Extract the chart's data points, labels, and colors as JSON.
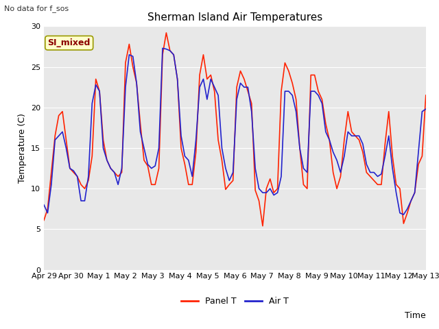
{
  "title": "Sherman Island Air Temperatures",
  "ylabel": "Temperature (C)",
  "xlabel": "Time",
  "no_data_label": "No data for f_sos",
  "annotation_label": "SI_mixed",
  "ylim": [
    0,
    30
  ],
  "yticks": [
    0,
    5,
    10,
    15,
    20,
    25,
    30
  ],
  "xtick_labels": [
    "Apr 29",
    "Apr 30",
    "May 1",
    "May 2",
    "May 3",
    "May 4",
    "May 5",
    "May 6",
    "May 7",
    "May 8",
    "May 9",
    "May 10",
    "May 11",
    "May 12",
    "May 13"
  ],
  "legend_labels": [
    "Panel T",
    "Air T"
  ],
  "line_colors": [
    "#ff2200",
    "#2222cc"
  ],
  "bg_color": "#e8e8e8",
  "title_fontsize": 11,
  "label_fontsize": 9,
  "tick_fontsize": 8,
  "panel_T": [
    6.1,
    7.5,
    12.0,
    16.5,
    19.0,
    19.5,
    16.0,
    12.5,
    12.0,
    11.5,
    10.5,
    10.0,
    11.0,
    14.0,
    23.5,
    22.0,
    16.0,
    13.5,
    12.5,
    12.0,
    11.5,
    12.0,
    25.5,
    27.8,
    25.0,
    23.0,
    18.0,
    13.5,
    12.8,
    10.5,
    10.5,
    12.5,
    26.5,
    29.2,
    27.0,
    26.5,
    23.5,
    15.0,
    13.0,
    10.5,
    10.5,
    14.5,
    24.0,
    26.5,
    23.5,
    24.0,
    22.0,
    16.0,
    13.5,
    9.9,
    10.5,
    11.0,
    22.5,
    24.5,
    23.5,
    22.0,
    20.5,
    9.8,
    8.5,
    5.4,
    10.0,
    11.2,
    9.5,
    10.0,
    22.0,
    25.5,
    24.5,
    23.0,
    21.0,
    15.0,
    10.5,
    10.0,
    24.0,
    24.0,
    22.0,
    21.0,
    18.0,
    16.0,
    12.0,
    10.0,
    11.5,
    16.0,
    19.5,
    17.0,
    16.5,
    16.0,
    14.5,
    12.0,
    11.5,
    11.0,
    10.5,
    10.5,
    15.5,
    19.5,
    14.0,
    10.5,
    10.0,
    5.7,
    7.0,
    8.5,
    9.5,
    13.0,
    14.0,
    21.5
  ],
  "air_T": [
    8.0,
    7.0,
    10.5,
    16.0,
    16.5,
    17.0,
    15.0,
    12.5,
    12.2,
    11.5,
    8.5,
    8.5,
    11.5,
    20.5,
    22.8,
    22.0,
    15.0,
    13.5,
    12.5,
    12.0,
    10.5,
    12.5,
    22.5,
    26.5,
    26.3,
    23.0,
    17.0,
    15.0,
    13.0,
    12.5,
    12.8,
    15.0,
    27.3,
    27.2,
    27.0,
    26.5,
    23.5,
    16.5,
    14.0,
    13.5,
    11.5,
    16.0,
    22.5,
    23.5,
    21.0,
    23.5,
    22.5,
    21.5,
    15.0,
    12.5,
    11.0,
    12.0,
    21.0,
    23.0,
    22.5,
    22.5,
    19.5,
    12.5,
    10.0,
    9.5,
    9.5,
    10.0,
    9.2,
    9.5,
    11.5,
    22.0,
    22.0,
    21.5,
    19.5,
    15.0,
    12.5,
    12.0,
    22.0,
    22.0,
    21.5,
    20.5,
    17.0,
    16.0,
    14.5,
    13.5,
    12.0,
    14.0,
    17.0,
    16.5,
    16.5,
    16.5,
    15.5,
    13.0,
    12.0,
    12.0,
    11.5,
    11.8,
    14.0,
    16.5,
    12.5,
    9.5,
    7.0,
    6.8,
    7.5,
    8.5,
    9.5,
    14.5,
    19.5,
    19.8
  ]
}
